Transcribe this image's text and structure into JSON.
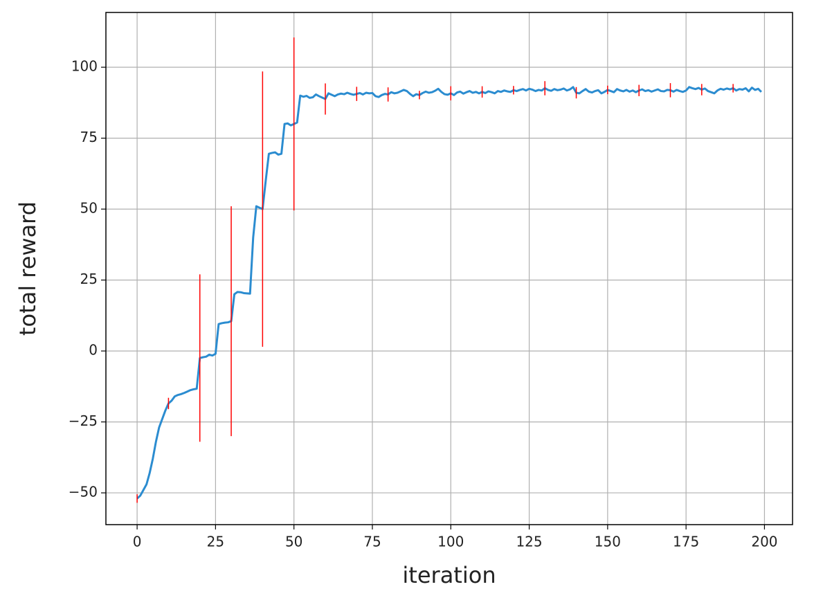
{
  "chart_data": {
    "type": "line",
    "xlabel": "iteration",
    "ylabel": "total reward",
    "xlim": [
      -9.95,
      208.95
    ],
    "ylim": [
      -61.2,
      119.3
    ],
    "xticks": [
      0,
      25,
      50,
      75,
      100,
      125,
      150,
      175,
      200
    ],
    "yticks": [
      {
        "value": -50,
        "label": "−50"
      },
      {
        "value": -25,
        "label": "−25"
      },
      0,
      25,
      50,
      75,
      100
    ],
    "grid": true,
    "x": [
      0,
      1,
      2,
      3,
      4,
      5,
      6,
      7,
      8,
      9,
      10,
      11,
      12,
      13,
      14,
      15,
      16,
      17,
      18,
      19,
      20,
      21,
      22,
      23,
      24,
      25,
      26,
      27,
      28,
      29,
      30,
      31,
      32,
      33,
      34,
      35,
      36,
      37,
      38,
      39,
      40,
      41,
      42,
      43,
      44,
      45,
      46,
      47,
      48,
      49,
      50,
      51,
      52,
      53,
      54,
      55,
      56,
      57,
      58,
      59,
      60,
      61,
      62,
      63,
      64,
      65,
      66,
      67,
      68,
      69,
      70,
      71,
      72,
      73,
      74,
      75,
      76,
      77,
      78,
      79,
      80,
      81,
      82,
      83,
      84,
      85,
      86,
      87,
      88,
      89,
      90,
      91,
      92,
      93,
      94,
      95,
      96,
      97,
      98,
      99,
      100,
      101,
      102,
      103,
      104,
      105,
      106,
      107,
      108,
      109,
      110,
      111,
      112,
      113,
      114,
      115,
      116,
      117,
      118,
      119,
      120,
      121,
      122,
      123,
      124,
      125,
      126,
      127,
      128,
      129,
      130,
      131,
      132,
      133,
      134,
      135,
      136,
      137,
      138,
      139,
      140,
      141,
      142,
      143,
      144,
      145,
      146,
      147,
      148,
      149,
      150,
      151,
      152,
      153,
      154,
      155,
      156,
      157,
      158,
      159,
      160,
      161,
      162,
      163,
      164,
      165,
      166,
      167,
      168,
      169,
      170,
      171,
      172,
      173,
      174,
      175,
      176,
      177,
      178,
      179,
      180,
      181,
      182,
      183,
      184,
      185,
      186,
      187,
      188,
      189,
      190,
      191,
      192,
      193,
      194,
      195,
      196,
      197,
      198,
      199
    ],
    "series": [
      {
        "color": "#2b8cd0",
        "values": [
          -52,
          -51,
          -49,
          -47,
          -43,
          -38,
          -32,
          -27,
          -24,
          -21,
          -18.5,
          -17.5,
          -16,
          -15.5,
          -15.2,
          -14.8,
          -14.3,
          -13.8,
          -13.5,
          -13.3,
          -2.5,
          -2.2,
          -2,
          -1.3,
          -1.6,
          -1,
          9.5,
          9.8,
          10,
          10.1,
          10.5,
          20,
          20.8,
          20.7,
          20.4,
          20.3,
          20.2,
          40,
          51,
          50.5,
          50,
          60,
          69.5,
          69.8,
          70,
          69.2,
          69.5,
          80,
          80.2,
          79.5,
          80,
          80.5,
          90,
          89.6,
          89.9,
          89.2,
          89.4,
          90.4,
          89.8,
          89.3,
          88.8,
          90.8,
          90.3,
          89.8,
          90.4,
          90.7,
          90.5,
          91,
          90.6,
          90.3,
          90.6,
          90.9,
          90.4,
          91,
          90.8,
          90.9,
          89.8,
          89.5,
          90.2,
          90.6,
          90.4,
          91.2,
          90.8,
          91,
          91.5,
          92,
          91.6,
          90.6,
          89.8,
          90.5,
          90.2,
          90.9,
          91.4,
          91,
          91.2,
          91.7,
          92.4,
          91.3,
          90.5,
          90.3,
          90.8,
          90.2,
          91.1,
          91.4,
          90.7,
          91.2,
          91.6,
          91,
          91.3,
          90.8,
          91.3,
          90.9,
          91.5,
          91.2,
          90.8,
          91.6,
          91.3,
          91.8,
          91.5,
          91.3,
          91.9,
          91.6,
          92,
          92.3,
          91.8,
          92.4,
          92.1,
          91.6,
          92,
          91.8,
          92.6,
          92,
          91.7,
          92.3,
          91.9,
          92.1,
          92.5,
          91.8,
          92.2,
          93,
          91,
          90.8,
          91.6,
          92.3,
          91.4,
          91.1,
          91.6,
          91.9,
          90.8,
          91.3,
          92,
          91.6,
          91.2,
          92.3,
          91.8,
          91.5,
          92,
          91.4,
          91.8,
          91.2,
          91.8,
          92.2,
          91.6,
          91.9,
          91.4,
          91.8,
          92.2,
          91.6,
          91.5,
          92,
          91.9,
          91.4,
          92,
          91.6,
          91.3,
          91.8,
          93,
          92.6,
          92.3,
          92.7,
          92.1,
          92.5,
          91.6,
          91.2,
          90.8,
          91.8,
          92.4,
          92.1,
          92.5,
          92.2,
          92.6,
          91.8,
          92.3,
          92.1,
          92.6,
          91.5,
          92.8,
          92,
          92.4,
          91.3
        ]
      }
    ],
    "errorbars": {
      "color": "#ff0000",
      "x": [
        0,
        10,
        20,
        30,
        40,
        50,
        60,
        70,
        80,
        90,
        100,
        110,
        120,
        130,
        140,
        150,
        160,
        170,
        180,
        190
      ],
      "values": [
        -52,
        -18.5,
        -2.5,
        10.5,
        50,
        80,
        88.8,
        90.6,
        90.4,
        90.2,
        90.8,
        91.3,
        91.9,
        92.6,
        91,
        92,
        91.8,
        91.9,
        92.1,
        92.6
      ],
      "errors": [
        1.5,
        2,
        29.5,
        40.5,
        48.5,
        30.5,
        5.5,
        2.5,
        2.5,
        1.5,
        2.5,
        2,
        1.5,
        2.5,
        2,
        1.5,
        2,
        2.5,
        2,
        1.5
      ]
    }
  }
}
